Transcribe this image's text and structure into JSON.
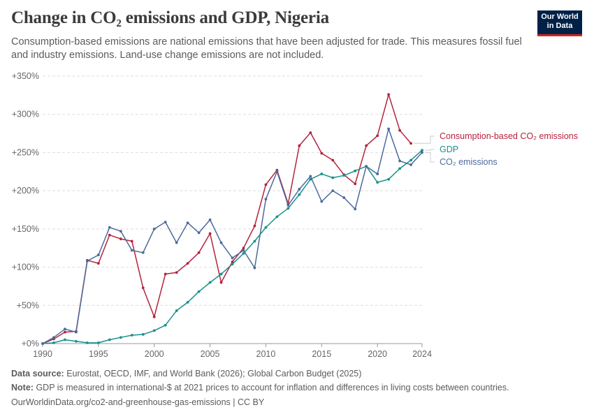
{
  "header": {
    "title": "Change in CO₂ emissions and GDP, Nigeria",
    "subtitle": "Consumption-based emissions are national emissions that have been adjusted for trade. This measures fossil fuel and industry emissions. Land-use change emissions are not included.",
    "logo_line1": "Our World",
    "logo_line2": "in Data"
  },
  "footer": {
    "source_label": "Data source:",
    "source_text": "Eurostat, OECD, IMF, and World Bank (2026); Global Carbon Budget (2025)",
    "note_label": "Note:",
    "note_text": "GDP is measured in international-$ at 2021 prices to account for inflation and differences in living costs between countries.",
    "url_text": "OurWorldinData.org/co2-and-greenhouse-gas-emissions | CC BY"
  },
  "colors": {
    "consumption": "#b4233c",
    "gdp": "#17918a",
    "co2": "#4c6a9c",
    "grid": "#dddddd",
    "axis": "#666666"
  },
  "chart_data": {
    "type": "line",
    "xlim": [
      1990,
      2024
    ],
    "ylim": [
      0,
      350
    ],
    "x_ticks": [
      {
        "value": 1990,
        "label": "1990"
      },
      {
        "value": 1995,
        "label": "1995"
      },
      {
        "value": 2000,
        "label": "2000"
      },
      {
        "value": 2005,
        "label": "2005"
      },
      {
        "value": 2010,
        "label": "2010"
      },
      {
        "value": 2015,
        "label": "2015"
      },
      {
        "value": 2020,
        "label": "2020"
      },
      {
        "value": 2024,
        "label": "2024"
      }
    ],
    "y_ticks": [
      {
        "value": 0,
        "label": "+0%"
      },
      {
        "value": 50,
        "label": "+50%"
      },
      {
        "value": 100,
        "label": "+100%"
      },
      {
        "value": 150,
        "label": "+150%"
      },
      {
        "value": 200,
        "label": "+200%"
      },
      {
        "value": 250,
        "label": "+250%"
      },
      {
        "value": 300,
        "label": "+300%"
      },
      {
        "value": 350,
        "label": "+350%"
      }
    ],
    "grid": true,
    "legend_position": "right (end-of-line labels)",
    "series": [
      {
        "key": "consumption",
        "name": "Consumption-based CO₂ emissions",
        "x": [
          1990,
          1991,
          1992,
          1993,
          1994,
          1995,
          1996,
          1997,
          1998,
          1999,
          2000,
          2001,
          2002,
          2003,
          2004,
          2005,
          2006,
          2007,
          2008,
          2009,
          2010,
          2011,
          2012,
          2013,
          2014,
          2015,
          2016,
          2017,
          2018,
          2019,
          2020,
          2021,
          2022,
          2023
        ],
        "values": [
          0,
          6,
          15,
          16,
          109,
          105,
          142,
          137,
          134,
          73,
          35,
          91,
          93,
          105,
          119,
          144,
          80,
          107,
          125,
          154,
          208,
          227,
          183,
          259,
          276,
          249,
          240,
          221,
          209,
          259,
          272,
          326,
          279,
          262
        ]
      },
      {
        "key": "gdp",
        "name": "GDP",
        "x": [
          1990,
          1991,
          1992,
          1993,
          1994,
          1995,
          1996,
          1997,
          1998,
          1999,
          2000,
          2001,
          2002,
          2003,
          2004,
          2005,
          2006,
          2007,
          2008,
          2009,
          2010,
          2011,
          2012,
          2013,
          2014,
          2015,
          2016,
          2017,
          2018,
          2019,
          2020,
          2021,
          2022,
          2023,
          2024
        ],
        "values": [
          0,
          1,
          5,
          3,
          1,
          1,
          5,
          8,
          11,
          12,
          17,
          24,
          43,
          54,
          68,
          80,
          91,
          104,
          118,
          134,
          152,
          166,
          177,
          195,
          215,
          222,
          217,
          220,
          226,
          232,
          211,
          215,
          229,
          240,
          253
        ]
      },
      {
        "key": "co2",
        "name": "CO₂ emissions",
        "x": [
          1990,
          1991,
          1992,
          1993,
          1994,
          1995,
          1996,
          1997,
          1998,
          1999,
          2000,
          2001,
          2002,
          2003,
          2004,
          2005,
          2006,
          2007,
          2008,
          2009,
          2010,
          2011,
          2012,
          2013,
          2014,
          2015,
          2016,
          2017,
          2018,
          2019,
          2020,
          2021,
          2022,
          2023,
          2024
        ],
        "values": [
          0,
          8,
          19,
          15,
          108,
          116,
          152,
          147,
          122,
          119,
          150,
          159,
          132,
          158,
          145,
          162,
          132,
          112,
          122,
          99,
          189,
          225,
          181,
          202,
          219,
          186,
          200,
          191,
          176,
          232,
          222,
          281,
          239,
          234,
          250
        ]
      }
    ]
  }
}
